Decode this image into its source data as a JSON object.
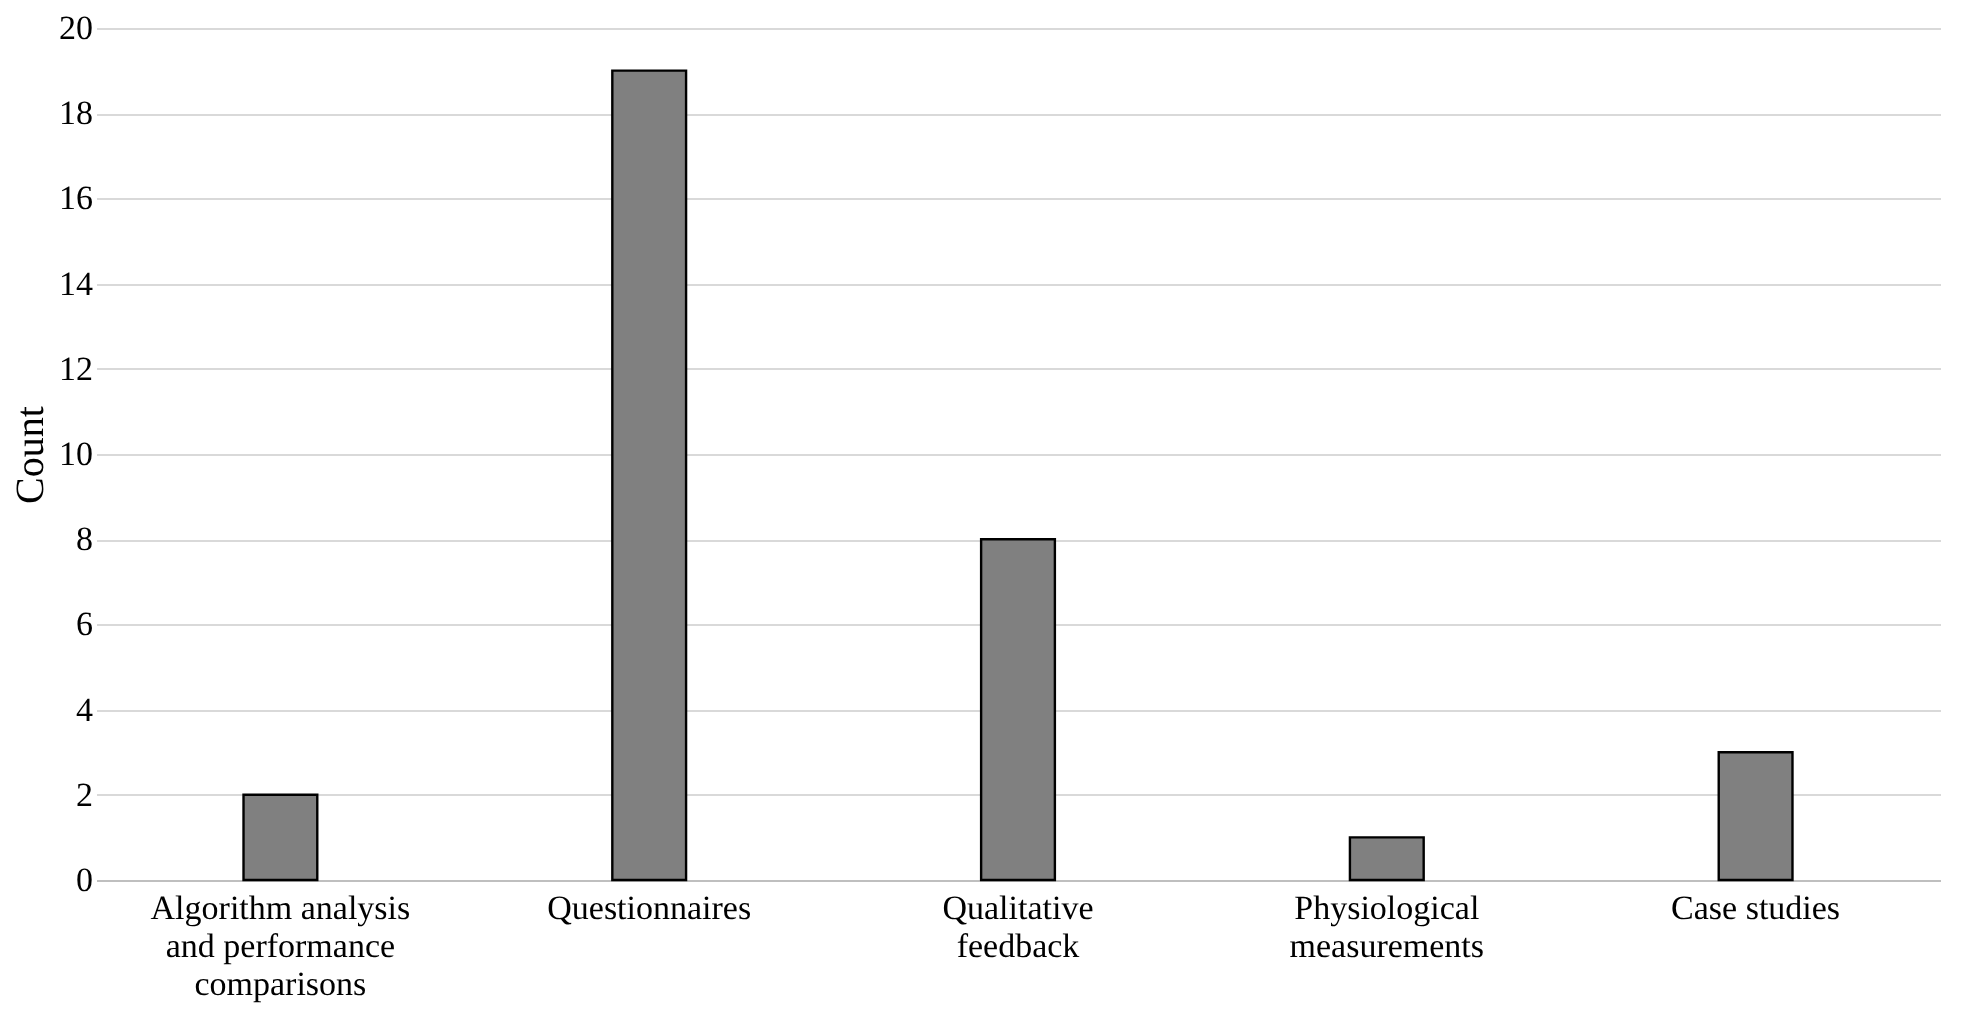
{
  "chart_data": {
    "type": "bar",
    "ylabel": "Count",
    "categories": [
      "Algorithm analysis and performance comparisons",
      "Questionnaires",
      "Qualitative feedback",
      "Physiological measurements",
      "Case studies"
    ],
    "values": [
      2,
      19,
      8,
      1,
      3
    ],
    "color": "#808080",
    "ylim": [
      0,
      20
    ],
    "yticks": [
      0,
      2,
      4,
      6,
      8,
      10,
      12,
      14,
      16,
      18,
      20
    ],
    "grid": "y"
  }
}
